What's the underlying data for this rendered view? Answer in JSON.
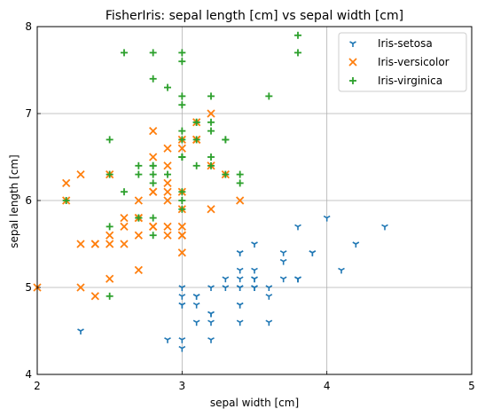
{
  "chart_data": {
    "type": "scatter",
    "title": "FisherIris: sepal length [cm] vs sepal width [cm]",
    "xlabel": "sepal width [cm]",
    "ylabel": "sepal length [cm]",
    "xlim": [
      2,
      5
    ],
    "ylim": [
      4,
      8
    ],
    "xticks": [
      2,
      3,
      4,
      5
    ],
    "yticks": [
      4,
      5,
      6,
      7,
      8
    ],
    "grid": true,
    "legend_position": "top-right",
    "series": [
      {
        "name": "Iris-setosa",
        "marker": "tri_down",
        "color": "#1f77b4",
        "points": [
          [
            3.5,
            5.1
          ],
          [
            3.0,
            4.9
          ],
          [
            3.2,
            4.7
          ],
          [
            3.1,
            4.6
          ],
          [
            3.6,
            5.0
          ],
          [
            3.9,
            5.4
          ],
          [
            3.4,
            4.6
          ],
          [
            3.4,
            5.0
          ],
          [
            2.9,
            4.4
          ],
          [
            3.1,
            4.9
          ],
          [
            3.7,
            5.4
          ],
          [
            3.4,
            4.8
          ],
          [
            3.0,
            4.8
          ],
          [
            3.0,
            4.3
          ],
          [
            4.0,
            5.8
          ],
          [
            4.4,
            5.7
          ],
          [
            3.9,
            5.4
          ],
          [
            3.5,
            5.1
          ],
          [
            3.8,
            5.7
          ],
          [
            3.8,
            5.1
          ],
          [
            3.4,
            5.4
          ],
          [
            3.7,
            5.1
          ],
          [
            3.6,
            4.6
          ],
          [
            3.3,
            5.1
          ],
          [
            3.4,
            4.8
          ],
          [
            3.0,
            5.0
          ],
          [
            3.4,
            5.0
          ],
          [
            3.5,
            5.2
          ],
          [
            3.4,
            5.2
          ],
          [
            3.2,
            4.7
          ],
          [
            3.1,
            4.8
          ],
          [
            3.4,
            5.4
          ],
          [
            4.1,
            5.2
          ],
          [
            4.2,
            5.5
          ],
          [
            3.1,
            4.9
          ],
          [
            3.2,
            5.0
          ],
          [
            3.5,
            5.5
          ],
          [
            3.6,
            4.9
          ],
          [
            3.0,
            4.4
          ],
          [
            3.4,
            5.1
          ],
          [
            3.5,
            5.0
          ],
          [
            2.3,
            4.5
          ],
          [
            3.2,
            4.4
          ],
          [
            3.5,
            5.0
          ],
          [
            3.8,
            5.1
          ],
          [
            3.0,
            4.8
          ],
          [
            3.8,
            5.1
          ],
          [
            3.2,
            4.6
          ],
          [
            3.7,
            5.3
          ],
          [
            3.3,
            5.0
          ]
        ]
      },
      {
        "name": "Iris-versicolor",
        "marker": "x",
        "color": "#ff7f0e",
        "points": [
          [
            3.2,
            7.0
          ],
          [
            3.2,
            6.4
          ],
          [
            3.1,
            6.9
          ],
          [
            2.3,
            5.5
          ],
          [
            2.8,
            6.5
          ],
          [
            2.8,
            5.7
          ],
          [
            3.3,
            6.3
          ],
          [
            2.4,
            4.9
          ],
          [
            2.9,
            6.6
          ],
          [
            2.7,
            5.2
          ],
          [
            2.0,
            5.0
          ],
          [
            3.0,
            5.9
          ],
          [
            2.2,
            6.0
          ],
          [
            2.9,
            6.1
          ],
          [
            2.9,
            5.6
          ],
          [
            3.1,
            6.7
          ],
          [
            3.0,
            5.6
          ],
          [
            2.7,
            5.8
          ],
          [
            2.2,
            6.2
          ],
          [
            2.5,
            5.6
          ],
          [
            3.2,
            5.9
          ],
          [
            2.8,
            6.1
          ],
          [
            2.5,
            6.3
          ],
          [
            2.8,
            6.1
          ],
          [
            2.9,
            6.4
          ],
          [
            3.0,
            6.6
          ],
          [
            2.8,
            6.8
          ],
          [
            3.0,
            6.7
          ],
          [
            2.9,
            6.0
          ],
          [
            2.6,
            5.7
          ],
          [
            2.4,
            5.5
          ],
          [
            2.4,
            5.5
          ],
          [
            2.7,
            5.8
          ],
          [
            2.7,
            6.0
          ],
          [
            3.0,
            5.4
          ],
          [
            3.4,
            6.0
          ],
          [
            3.1,
            6.7
          ],
          [
            2.3,
            6.3
          ],
          [
            3.0,
            5.6
          ],
          [
            2.5,
            5.5
          ],
          [
            2.6,
            5.5
          ],
          [
            3.0,
            6.1
          ],
          [
            2.6,
            5.8
          ],
          [
            2.3,
            5.0
          ],
          [
            2.7,
            5.6
          ],
          [
            3.0,
            5.7
          ],
          [
            2.9,
            5.7
          ],
          [
            2.9,
            6.2
          ],
          [
            2.5,
            5.1
          ],
          [
            2.8,
            5.7
          ]
        ]
      },
      {
        "name": "Iris-virginica",
        "marker": "plus",
        "color": "#2ca02c",
        "points": [
          [
            3.3,
            6.3
          ],
          [
            2.7,
            5.8
          ],
          [
            3.0,
            7.1
          ],
          [
            2.9,
            6.3
          ],
          [
            3.0,
            6.5
          ],
          [
            3.0,
            7.6
          ],
          [
            2.5,
            4.9
          ],
          [
            2.9,
            7.3
          ],
          [
            2.5,
            6.7
          ],
          [
            3.6,
            7.2
          ],
          [
            3.2,
            6.5
          ],
          [
            2.7,
            6.4
          ],
          [
            3.0,
            6.8
          ],
          [
            2.5,
            5.7
          ],
          [
            2.8,
            5.8
          ],
          [
            3.2,
            6.4
          ],
          [
            3.0,
            6.5
          ],
          [
            3.8,
            7.7
          ],
          [
            2.6,
            7.7
          ],
          [
            2.2,
            6.0
          ],
          [
            3.2,
            6.9
          ],
          [
            2.8,
            5.6
          ],
          [
            2.8,
            7.7
          ],
          [
            2.7,
            6.3
          ],
          [
            3.3,
            6.7
          ],
          [
            3.2,
            7.2
          ],
          [
            2.8,
            6.2
          ],
          [
            3.0,
            6.1
          ],
          [
            2.8,
            6.4
          ],
          [
            3.0,
            7.2
          ],
          [
            2.8,
            7.4
          ],
          [
            3.8,
            7.9
          ],
          [
            2.8,
            6.4
          ],
          [
            2.8,
            6.3
          ],
          [
            2.6,
            6.1
          ],
          [
            3.0,
            7.7
          ],
          [
            3.4,
            6.3
          ],
          [
            3.1,
            6.4
          ],
          [
            3.0,
            6.0
          ],
          [
            3.1,
            6.9
          ],
          [
            3.1,
            6.7
          ],
          [
            3.1,
            6.9
          ],
          [
            2.7,
            5.8
          ],
          [
            3.2,
            6.8
          ],
          [
            3.3,
            6.7
          ],
          [
            3.0,
            6.7
          ],
          [
            2.5,
            6.3
          ],
          [
            3.0,
            6.5
          ],
          [
            3.4,
            6.2
          ],
          [
            3.0,
            5.9
          ]
        ]
      }
    ]
  }
}
